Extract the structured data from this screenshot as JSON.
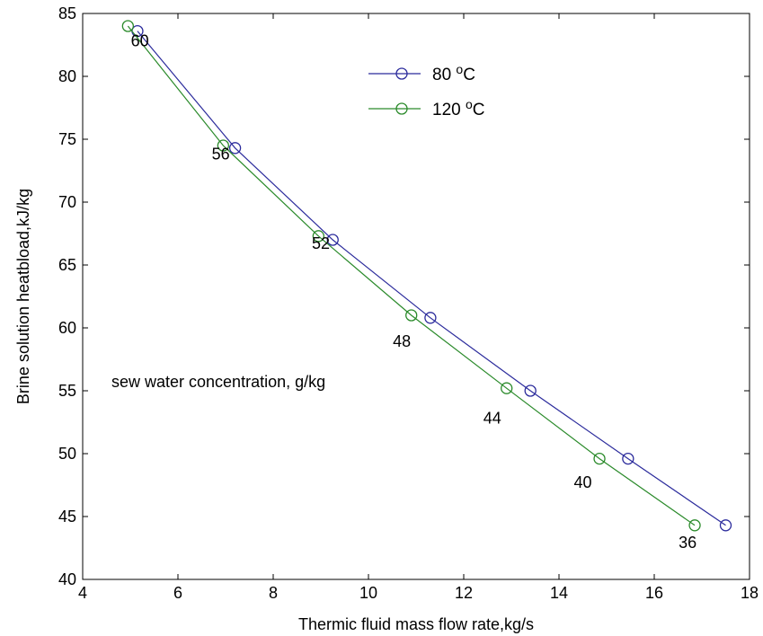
{
  "chart_data": {
    "type": "line",
    "xlabel": "Thermic fluid mass flow rate,kg/s",
    "ylabel": "Brine solution heatbload,kJ/kg",
    "xlim": [
      4,
      18
    ],
    "ylim": [
      40,
      85
    ],
    "xticks": [
      "4",
      "6",
      "8",
      "10",
      "12",
      "14",
      "16",
      "18"
    ],
    "yticks": [
      "40",
      "45",
      "50",
      "55",
      "60",
      "65",
      "70",
      "75",
      "80",
      "85"
    ],
    "grid": false,
    "legend_position": "top-center",
    "series": [
      {
        "name": "80 °C",
        "name_base": "80 ",
        "name_sup": "o",
        "name_unit": "C",
        "color": "#2b2b9c",
        "x": [
          5.15,
          7.2,
          9.25,
          11.3,
          13.4,
          15.45,
          17.5
        ],
        "y": [
          83.6,
          74.3,
          67.0,
          60.8,
          55.0,
          49.6,
          44.3
        ]
      },
      {
        "name": "120 °C",
        "name_base": "120 ",
        "name_sup": "o",
        "name_unit": "C",
        "color": "#2a8a2a",
        "x": [
          4.95,
          6.95,
          8.95,
          10.9,
          12.9,
          14.85,
          16.85
        ],
        "y": [
          84.0,
          74.5,
          67.3,
          61.0,
          55.2,
          49.6,
          44.3
        ]
      }
    ],
    "annotations": {
      "title": "sew water concentration, g/kg",
      "labels": [
        {
          "text": "60",
          "x": 5.2,
          "y": 82.4
        },
        {
          "text": "56",
          "x": 6.9,
          "y": 73.4
        },
        {
          "text": "52",
          "x": 9.0,
          "y": 66.3
        },
        {
          "text": "48",
          "x": 10.7,
          "y": 58.5
        },
        {
          "text": "44",
          "x": 12.6,
          "y": 52.4
        },
        {
          "text": "40",
          "x": 14.5,
          "y": 47.3
        },
        {
          "text": "36",
          "x": 16.7,
          "y": 42.5
        }
      ]
    }
  }
}
